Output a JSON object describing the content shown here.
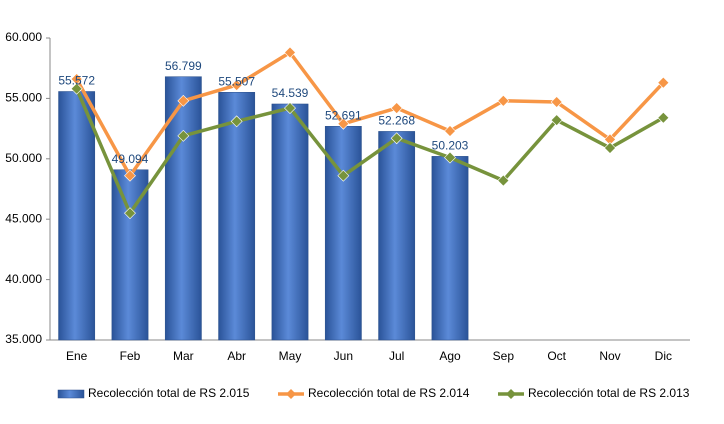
{
  "chart_data": {
    "type": "bar",
    "categories": [
      "Ene",
      "Feb",
      "Mar",
      "Abr",
      "May",
      "Jun",
      "Jul",
      "Ago",
      "Sep",
      "Oct",
      "Nov",
      "Dic"
    ],
    "series": [
      {
        "name": "Recolección total de RS 2.015",
        "type": "bar",
        "color": "#3a6fc0",
        "values": [
          55572,
          49094,
          56799,
          55507,
          54539,
          52691,
          52268,
          50203,
          null,
          null,
          null,
          null
        ],
        "value_labels": [
          "55.572",
          "49.094",
          "56.799",
          "55.507",
          "54.539",
          "52.691",
          "52.268",
          "50.203",
          null,
          null,
          null,
          null
        ]
      },
      {
        "name": "Recolección total de RS 2.014",
        "type": "line",
        "color": "#f79646",
        "values": [
          56600,
          48600,
          54800,
          56100,
          58800,
          52900,
          54200,
          52300,
          54800,
          54700,
          51600,
          56300
        ]
      },
      {
        "name": "Recolección total de RS 2.013",
        "type": "line",
        "color": "#77933c",
        "values": [
          55800,
          45500,
          51900,
          53100,
          54200,
          48600,
          51700,
          50100,
          48200,
          53200,
          50900,
          53400
        ]
      }
    ],
    "ylim": [
      35000,
      60000
    ],
    "yticks": [
      {
        "value": 35000,
        "label": "35.000"
      },
      {
        "value": 40000,
        "label": "40.000"
      },
      {
        "value": 45000,
        "label": "45.000"
      },
      {
        "value": 50000,
        "label": "50.000"
      },
      {
        "value": 55000,
        "label": "55.000"
      },
      {
        "value": 60000,
        "label": "60.000"
      }
    ],
    "grid": false,
    "legend": "bottom"
  }
}
